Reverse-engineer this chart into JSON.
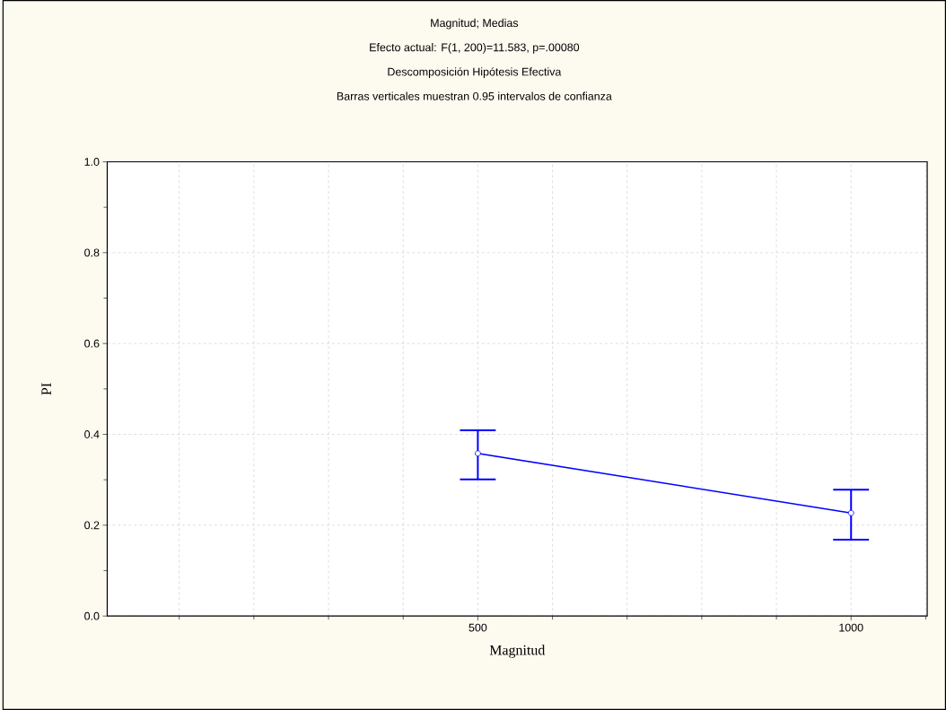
{
  "chart_data": {
    "type": "line",
    "title": "Magnitud; Medias",
    "subtitle": "Efecto actual: F(1, 200)=11.583, p=.00080",
    "annotations": [
      "Descomposición Hipótesis Efectiva",
      "Barras verticales muestran 0.95 intervalos de confianza"
    ],
    "xlabel": "Magnitud",
    "ylabel": "PI",
    "categories": [
      "500",
      "1000"
    ],
    "series": [
      {
        "color": "#0000ff",
        "values": [
          0.358,
          0.227
        ],
        "errors": [
          [
            0.301,
            0.409
          ],
          [
            0.168,
            0.278
          ]
        ]
      }
    ],
    "ylim": [
      0,
      1
    ],
    "yticks": [
      {
        "value": 0,
        "label": "0.0"
      },
      {
        "value": 0.2,
        "label": "0.2"
      },
      {
        "value": 0.4,
        "label": "0.4"
      },
      {
        "value": 0.6,
        "label": "0.6"
      },
      {
        "value": 0.8,
        "label": "0.8"
      },
      {
        "value": 1,
        "label": "1.0"
      }
    ],
    "grid": true,
    "marker": "circle",
    "line_style": "solid"
  }
}
